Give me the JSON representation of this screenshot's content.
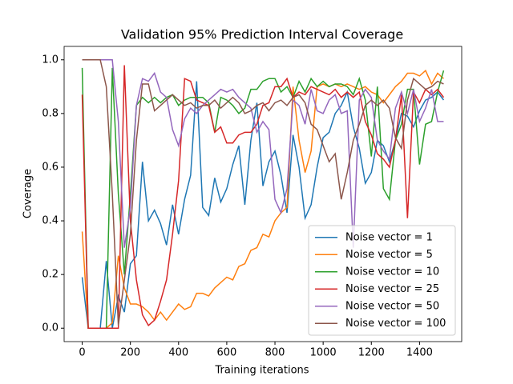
{
  "chart_data": {
    "type": "line",
    "title": "Validation 95% Prediction Interval Coverage",
    "xlabel": "Training iterations",
    "ylabel": "Coverage",
    "x": [
      0,
      25,
      50,
      75,
      100,
      125,
      150,
      175,
      200,
      225,
      250,
      275,
      300,
      325,
      350,
      375,
      400,
      425,
      450,
      475,
      500,
      525,
      550,
      575,
      600,
      625,
      650,
      675,
      700,
      725,
      750,
      775,
      800,
      825,
      850,
      875,
      900,
      925,
      950,
      975,
      1000,
      1025,
      1050,
      1075,
      1100,
      1125,
      1150,
      1175,
      1200,
      1225,
      1250,
      1275,
      1300,
      1325,
      1350,
      1375,
      1400,
      1425,
      1450,
      1475,
      1500
    ],
    "xlim": [
      -75,
      1575
    ],
    "xticks": [
      0,
      200,
      400,
      600,
      800,
      1000,
      1200,
      1400
    ],
    "ylim": [
      -0.05,
      1.05
    ],
    "yticks": [
      {
        "value": 0,
        "label": "0.0"
      },
      {
        "value": 0.2,
        "label": "0.2"
      },
      {
        "value": 0.4,
        "label": "0.4"
      },
      {
        "value": 0.6,
        "label": "0.6"
      },
      {
        "value": 0.8,
        "label": "0.8"
      },
      {
        "value": 1,
        "label": "1.0"
      }
    ],
    "legend": "lower right",
    "series": [
      {
        "name": "Noise vector = 1",
        "color": "#1f77b4",
        "values": [
          0.19,
          0,
          0,
          0,
          0.25,
          0,
          0.12,
          0.06,
          0.24,
          0.27,
          0.62,
          0.4,
          0.44,
          0.39,
          0.31,
          0.46,
          0.35,
          0.48,
          0.57,
          0.92,
          0.45,
          0.42,
          0.56,
          0.47,
          0.52,
          0.61,
          0.68,
          0.46,
          0.7,
          0.84,
          0.53,
          0.62,
          0.66,
          0.57,
          0.43,
          0.72,
          0.6,
          0.41,
          0.46,
          0.6,
          0.71,
          0.73,
          0.8,
          0.83,
          0.88,
          0.75,
          0.67,
          0.54,
          0.58,
          0.7,
          0.68,
          0.62,
          0.7,
          0.8,
          0.79,
          0.75,
          0.81,
          0.85,
          0.86,
          0.88,
          0.85
        ]
      },
      {
        "name": "Noise vector = 5",
        "color": "#ff7f0e",
        "values": [
          0.36,
          0,
          0,
          0,
          0,
          0.02,
          0.27,
          0.15,
          0.09,
          0.09,
          0.08,
          0.06,
          0.03,
          0.06,
          0.03,
          0.06,
          0.09,
          0.07,
          0.08,
          0.13,
          0.13,
          0.12,
          0.15,
          0.17,
          0.19,
          0.18,
          0.23,
          0.24,
          0.29,
          0.3,
          0.35,
          0.34,
          0.4,
          0.43,
          0.45,
          0.9,
          0.7,
          0.58,
          0.66,
          0.9,
          0.91,
          0.9,
          0.91,
          0.9,
          0.91,
          0.9,
          0.89,
          0.9,
          0.88,
          0.87,
          0.84,
          0.87,
          0.9,
          0.92,
          0.95,
          0.95,
          0.94,
          0.96,
          0.91,
          0.95,
          0.93
        ]
      },
      {
        "name": "Noise vector = 10",
        "color": "#2ca02c",
        "values": [
          0.97,
          0,
          0,
          0,
          0,
          0.97,
          0.5,
          0.2,
          0.5,
          0.83,
          0.86,
          0.84,
          0.86,
          0.84,
          0.86,
          0.87,
          0.83,
          0.85,
          0.86,
          0.86,
          0.86,
          0.84,
          0.73,
          0.86,
          0.85,
          0.83,
          0.8,
          0.82,
          0.89,
          0.89,
          0.92,
          0.93,
          0.93,
          0.88,
          0.9,
          0.86,
          0.92,
          0.88,
          0.93,
          0.9,
          0.92,
          0.9,
          0.91,
          0.91,
          0.9,
          0.87,
          0.93,
          0.85,
          0.64,
          0.9,
          0.52,
          0.48,
          0.7,
          0.76,
          0.89,
          0.89,
          0.61,
          0.76,
          0.77,
          0.88,
          0.96
        ]
      },
      {
        "name": "Noise vector = 25",
        "color": "#d62728",
        "values": [
          0.87,
          0,
          0,
          0,
          0,
          0,
          0,
          0.98,
          0.4,
          0.18,
          0.05,
          0.01,
          0.03,
          0.1,
          0.18,
          0.35,
          0.55,
          0.93,
          0.92,
          0.85,
          0.84,
          0.83,
          0.73,
          0.75,
          0.69,
          0.69,
          0.72,
          0.73,
          0.73,
          0.76,
          0.83,
          0.84,
          0.9,
          0.9,
          0.93,
          0.86,
          0.88,
          0.87,
          0.9,
          0.89,
          0.88,
          0.87,
          0.89,
          0.86,
          0.88,
          0.86,
          0.88,
          0.77,
          0.72,
          0.65,
          0.63,
          0.6,
          0.7,
          0.87,
          0.41,
          0.88,
          0.84,
          0.89,
          0.87,
          0.89,
          0.86
        ]
      },
      {
        "name": "Noise vector = 50",
        "color": "#9467bd",
        "values": [
          1,
          1,
          1,
          1,
          1,
          1,
          0.77,
          0.3,
          0.45,
          0.83,
          0.93,
          0.92,
          0.95,
          0.88,
          0.86,
          0.74,
          0.68,
          0.78,
          0.82,
          0.8,
          0.83,
          0.85,
          0.87,
          0.89,
          0.88,
          0.89,
          0.86,
          0.84,
          0.82,
          0.73,
          0.77,
          0.74,
          0.48,
          0.43,
          0.52,
          0.85,
          0.83,
          0.76,
          0.89,
          0.81,
          0.8,
          0.85,
          0.87,
          0.8,
          0.81,
          0.3,
          0.85,
          0.89,
          0.86,
          0.7,
          0.66,
          0.63,
          0.82,
          0.88,
          0.8,
          0.89,
          0.77,
          0.82,
          0.89,
          0.77,
          0.77
        ]
      },
      {
        "name": "Noise vector = 100",
        "color": "#8c564b",
        "values": [
          1,
          1,
          1,
          1,
          0.9,
          0.5,
          0.01,
          0.18,
          0.35,
          0.7,
          0.91,
          0.91,
          0.81,
          0.83,
          0.85,
          0.87,
          0.85,
          0.83,
          0.84,
          0.82,
          0.83,
          0.83,
          0.85,
          0.82,
          0.84,
          0.86,
          0.84,
          0.8,
          0.81,
          0.83,
          0.84,
          0.81,
          0.84,
          0.85,
          0.83,
          0.86,
          0.87,
          0.84,
          0.76,
          0.74,
          0.68,
          0.62,
          0.65,
          0.48,
          0.58,
          0.7,
          0.76,
          0.83,
          0.85,
          0.83,
          0.85,
          0.82,
          0.71,
          0.67,
          0.85,
          0.93,
          0.91,
          0.89,
          0.9,
          0.92,
          0.91
        ]
      }
    ]
  }
}
